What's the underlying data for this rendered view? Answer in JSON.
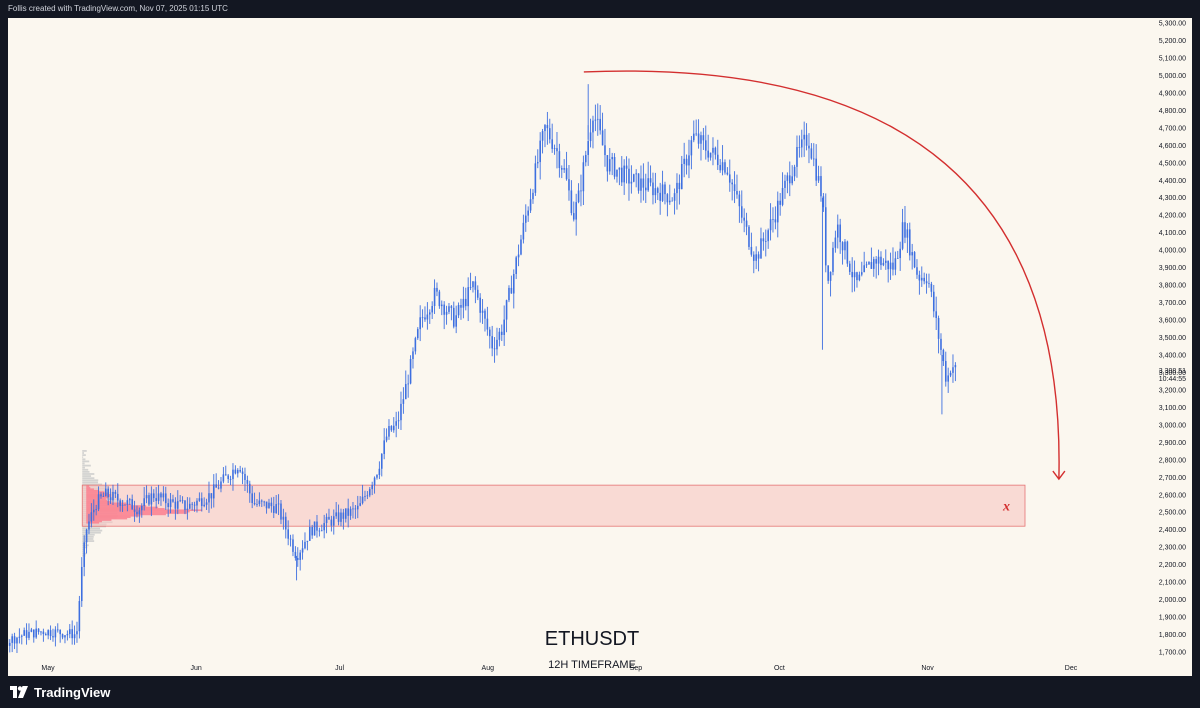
{
  "header": {
    "caption": "Follis created with TradingView.com, Nov 07, 2025 01:15 UTC"
  },
  "footer": {
    "logo_text": "TradingView"
  },
  "colors": {
    "background": "#fbf7ef",
    "candle": "#3d6fe0",
    "zone_fill": "#f9c7c2",
    "zone_stroke": "#e57373",
    "arc": "#d32f2f",
    "volume_profile": "#ff1744",
    "volume_ghost": "#c9c9c9"
  },
  "chart_data": {
    "type": "candlestick",
    "symbol": "ETHUSDT",
    "title": "ETHUSDT",
    "subtitle": "12H TIMEFRAME",
    "ylim": [
      1600,
      5350
    ],
    "y_ticks": [
      "5,300.00",
      "5,200.00",
      "5,100.00",
      "5,000.00",
      "4,900.00",
      "4,800.00",
      "4,700.00",
      "4,600.00",
      "4,500.00",
      "4,400.00",
      "4,300.00",
      "4,200.00",
      "4,100.00",
      "4,000.00",
      "3,900.00",
      "3,800.00",
      "3,700.00",
      "3,600.00",
      "3,500.00",
      "3,400.00",
      "3,300.00",
      "3,200.00",
      "3,100.00",
      "3,000.00",
      "2,900.00",
      "2,800.00",
      "2,700.00",
      "2,600.00",
      "2,500.00",
      "2,400.00",
      "2,300.00",
      "2,200.00",
      "2,100.00",
      "2,000.00",
      "1,900.00",
      "1,800.00",
      "1,700.00"
    ],
    "x_ticks": [
      {
        "label": "May",
        "date": "2025-05-01"
      },
      {
        "label": "Jun",
        "date": "2025-06-01"
      },
      {
        "label": "Jul",
        "date": "2025-07-01"
      },
      {
        "label": "Aug",
        "date": "2025-08-01"
      },
      {
        "label": "Sep",
        "date": "2025-09-01"
      },
      {
        "label": "Oct",
        "date": "2025-10-01"
      },
      {
        "label": "Nov",
        "date": "2025-11-01"
      },
      {
        "label": "Dec",
        "date": "2025-12-01"
      }
    ],
    "last_price": "3,308.51",
    "countdown": "10:44:55",
    "price_path": [
      [
        "2025-04-22",
        1760
      ],
      [
        "2025-04-26",
        1800
      ],
      [
        "2025-04-30",
        1820
      ],
      [
        "2025-05-04",
        1810
      ],
      [
        "2025-05-07",
        1800
      ],
      [
        "2025-05-08",
        2150
      ],
      [
        "2025-05-09",
        2400
      ],
      [
        "2025-05-11",
        2550
      ],
      [
        "2025-05-13",
        2600
      ],
      [
        "2025-05-16",
        2570
      ],
      [
        "2025-05-20",
        2520
      ],
      [
        "2025-05-23",
        2600
      ],
      [
        "2025-05-26",
        2560
      ],
      [
        "2025-05-30",
        2530
      ],
      [
        "2025-06-04",
        2600
      ],
      [
        "2025-06-10",
        2780
      ],
      [
        "2025-06-13",
        2550
      ],
      [
        "2025-06-18",
        2530
      ],
      [
        "2025-06-22",
        2250
      ],
      [
        "2025-06-25",
        2400
      ],
      [
        "2025-06-30",
        2460
      ],
      [
        "2025-07-05",
        2520
      ],
      [
        "2025-07-09",
        2750
      ],
      [
        "2025-07-11",
        2950
      ],
      [
        "2025-07-13",
        3000
      ],
      [
        "2025-07-16",
        3350
      ],
      [
        "2025-07-18",
        3600
      ],
      [
        "2025-07-21",
        3750
      ],
      [
        "2025-07-25",
        3600
      ],
      [
        "2025-07-29",
        3800
      ],
      [
        "2025-08-02",
        3450
      ],
      [
        "2025-08-04",
        3550
      ],
      [
        "2025-08-09",
        4200
      ],
      [
        "2025-08-13",
        4700
      ],
      [
        "2025-08-15",
        4600
      ],
      [
        "2025-08-17",
        4450
      ],
      [
        "2025-08-19",
        4200
      ],
      [
        "2025-08-20",
        4300
      ],
      [
        "2025-08-23",
        4800
      ],
      [
        "2025-08-26",
        4500
      ],
      [
        "2025-08-31",
        4400
      ],
      [
        "2025-09-05",
        4350
      ],
      [
        "2025-09-09",
        4300
      ],
      [
        "2025-09-13",
        4650
      ],
      [
        "2025-09-17",
        4550
      ],
      [
        "2025-09-20",
        4480
      ],
      [
        "2025-09-23",
        4200
      ],
      [
        "2025-09-26",
        3950
      ],
      [
        "2025-09-30",
        4200
      ],
      [
        "2025-10-04",
        4500
      ],
      [
        "2025-10-07",
        4650
      ],
      [
        "2025-10-10",
        4300
      ],
      [
        "2025-10-11",
        3800
      ],
      [
        "2025-10-13",
        4150
      ],
      [
        "2025-10-17",
        3800
      ],
      [
        "2025-10-21",
        3950
      ],
      [
        "2025-10-25",
        3900
      ],
      [
        "2025-10-27",
        4150
      ],
      [
        "2025-10-30",
        3850
      ],
      [
        "2025-11-01",
        3850
      ],
      [
        "2025-11-04",
        3400
      ],
      [
        "2025-11-05",
        3250
      ],
      [
        "2025-11-06",
        3350
      ],
      [
        "2025-11-07",
        3308.51
      ]
    ],
    "annotations": {
      "demand_zone": {
        "price_low": 2420,
        "price_high": 2655,
        "date_start": "2025-05-09",
        "date_end": "2025-12-01",
        "marker": "x"
      },
      "arc_projection": {
        "start_date": "2025-08-19",
        "peak_price": 5020,
        "end_date": "2025-11-27",
        "end_price": 2690
      }
    }
  }
}
